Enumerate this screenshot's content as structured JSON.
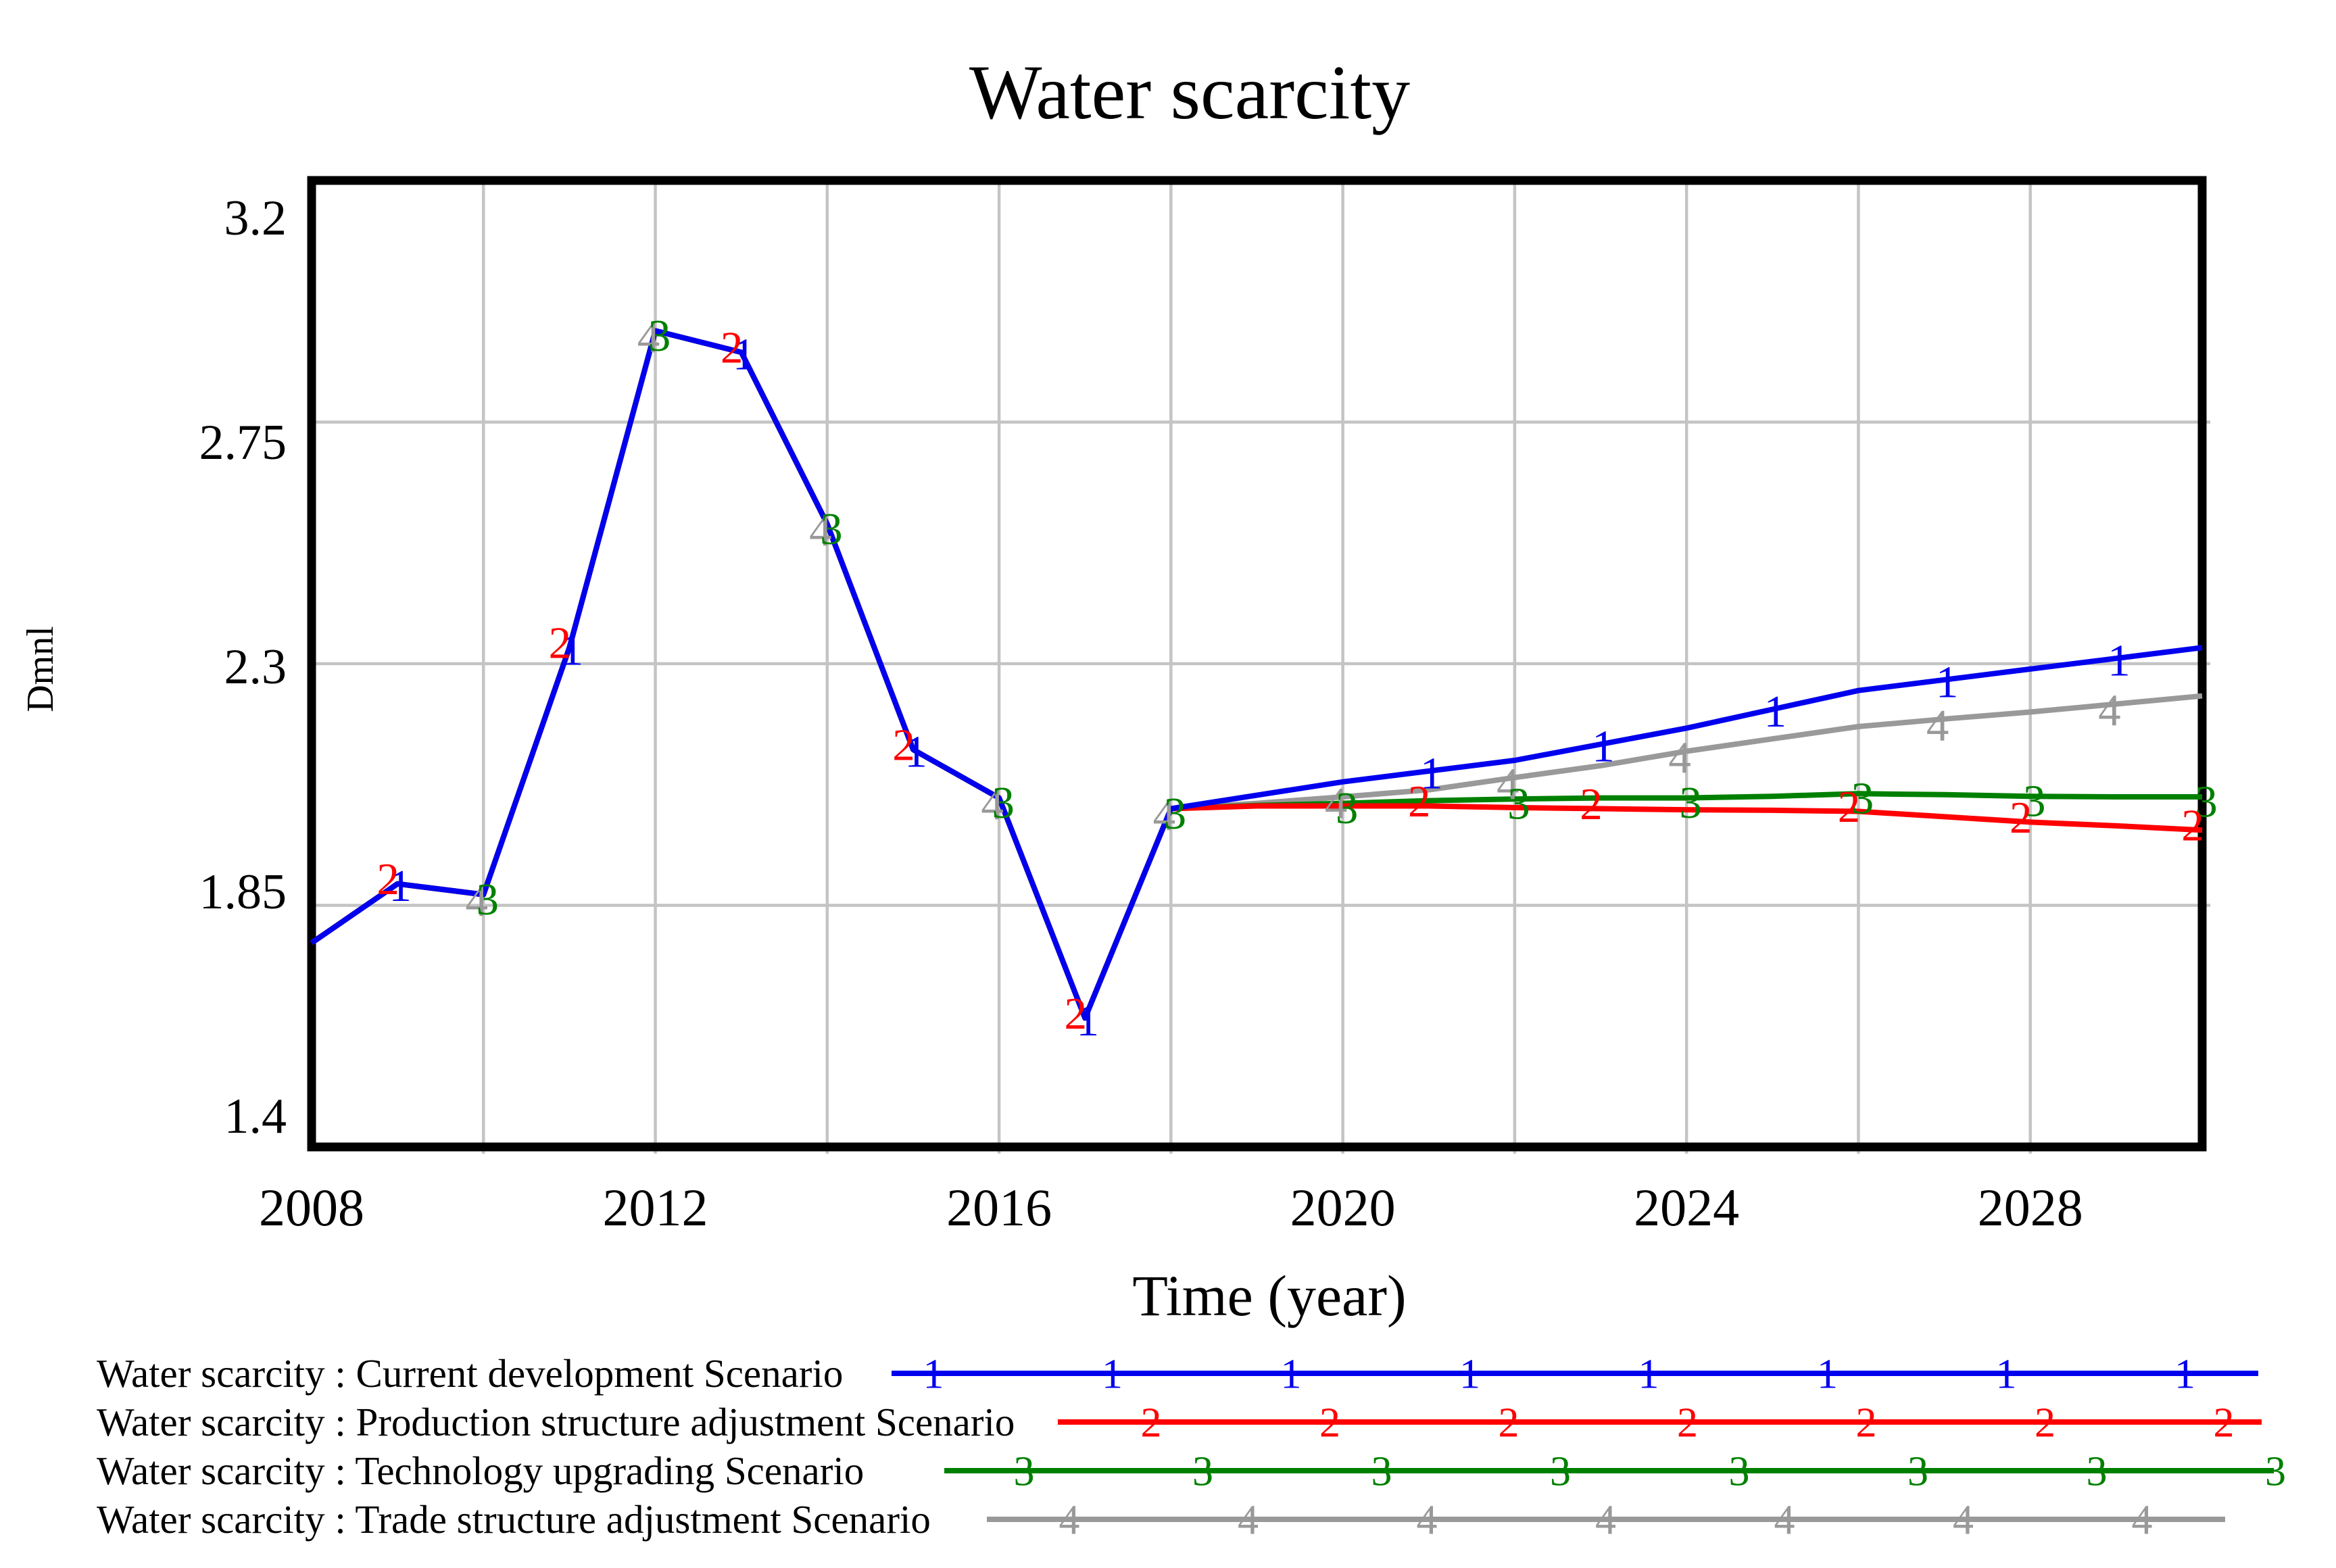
{
  "title": "Water scarcity",
  "y_axis": {
    "unit": "Dmnl",
    "ticks": [
      "3.2",
      "2.75",
      "2.3",
      "1.85",
      "1.4"
    ]
  },
  "x_axis": {
    "title": "Time (year)",
    "tick_labels": [
      "2008",
      "2012",
      "2016",
      "2020",
      "2024",
      "2028"
    ]
  },
  "colors": {
    "current_development": "#0000ee",
    "production_structure": "#ff0000",
    "technology_upgrading": "#008000",
    "trade_structure": "#999999",
    "gridline": "#c4c4c4",
    "frame": "#000000"
  },
  "chart_data": {
    "type": "line",
    "title": "Water scarcity",
    "xlabel": "Time (year)",
    "ylabel": "Dmnl",
    "xlim": [
      2008,
      2030
    ],
    "ylim": [
      1.4,
      3.2
    ],
    "grid": true,
    "x_grid_step_years": 2,
    "y_gridlines": [
      2.75,
      2.3,
      1.85
    ],
    "legend_position": "bottom-left",
    "x": [
      2008,
      2009,
      2010,
      2011,
      2012,
      2013,
      2014,
      2015,
      2016,
      2017,
      2018,
      2019,
      2020,
      2021,
      2022,
      2023,
      2024,
      2025,
      2026,
      2027,
      2028,
      2029,
      2030
    ],
    "series": [
      {
        "name": "Water scarcity : Current development Scenario",
        "symbol": "1",
        "color": "#0000ee",
        "values": [
          1.78,
          1.89,
          1.87,
          2.33,
          2.92,
          2.88,
          2.56,
          2.14,
          2.05,
          1.64,
          2.03,
          2.055,
          2.08,
          2.1,
          2.12,
          2.15,
          2.18,
          2.215,
          2.25,
          2.27,
          2.29,
          2.31,
          2.33
        ],
        "marker_years": [
          2009,
          2011,
          2013,
          2015,
          2017,
          2021,
          2023,
          2025,
          2027,
          2029
        ]
      },
      {
        "name": "Water scarcity : Production structure adjustment Scenario",
        "symbol": "2",
        "color": "#ff0000",
        "values": [
          1.78,
          1.89,
          1.87,
          2.33,
          2.92,
          2.88,
          2.56,
          2.14,
          2.05,
          1.64,
          2.03,
          2.035,
          2.035,
          2.035,
          2.032,
          2.03,
          2.028,
          2.027,
          2.025,
          2.015,
          2.005,
          1.998,
          1.99
        ],
        "marker_years": [
          2009,
          2011,
          2013,
          2015,
          2017,
          2021,
          2023,
          2026,
          2028,
          2030
        ]
      },
      {
        "name": "Water scarcity : Technology upgrading Scenario",
        "symbol": "3",
        "color": "#008000",
        "values": [
          1.78,
          1.89,
          1.87,
          2.33,
          2.92,
          2.88,
          2.56,
          2.14,
          2.05,
          1.64,
          2.03,
          2.036,
          2.04,
          2.045,
          2.048,
          2.05,
          2.05,
          2.053,
          2.058,
          2.056,
          2.053,
          2.052,
          2.052
        ],
        "marker_years": [
          2010,
          2012,
          2014,
          2016,
          2018,
          2020,
          2022,
          2024,
          2026,
          2028,
          2030
        ]
      },
      {
        "name": "Water scarcity : Trade structure adjustment Scenario",
        "symbol": "4",
        "color": "#999999",
        "values": [
          1.78,
          1.89,
          1.87,
          2.33,
          2.92,
          2.88,
          2.56,
          2.14,
          2.05,
          1.64,
          2.03,
          2.04,
          2.052,
          2.065,
          2.088,
          2.11,
          2.137,
          2.16,
          2.183,
          2.197,
          2.21,
          2.225,
          2.24
        ],
        "marker_years": [
          2010,
          2012,
          2014,
          2016,
          2018,
          2020,
          2022,
          2024,
          2027,
          2029
        ]
      }
    ]
  },
  "legend": {
    "items": [
      {
        "label": "Water scarcity : Current development Scenario",
        "symbol": "1",
        "color": "#0000ee"
      },
      {
        "label": "Water scarcity : Production structure adjustment Scenario",
        "symbol": "2",
        "color": "#ff0000"
      },
      {
        "label": "Water scarcity : Technology upgrading Scenario",
        "symbol": "3",
        "color": "#008000"
      },
      {
        "label": "Water scarcity : Trade structure adjustment Scenario",
        "symbol": "4",
        "color": "#999999"
      }
    ]
  }
}
